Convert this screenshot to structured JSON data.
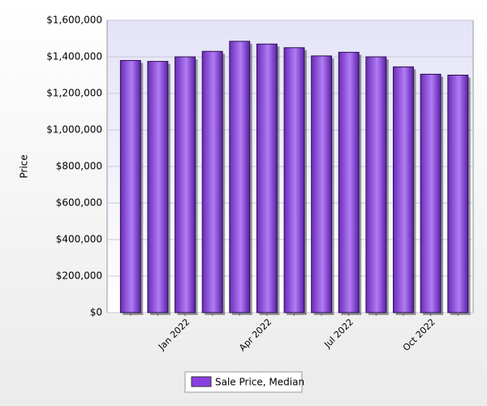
{
  "chart_data": {
    "type": "bar",
    "y_label": "Price",
    "categories": [
      null,
      null,
      "Jan 2022",
      null,
      null,
      "Apr 2022",
      null,
      null,
      "Jul 2022",
      null,
      null,
      "Oct 2022",
      null
    ],
    "series": [
      {
        "name": "Sale Price, Median",
        "color": "#8a3fe0",
        "values": [
          1380000,
          1375000,
          1400000,
          1430000,
          1485000,
          1470000,
          1450000,
          1405000,
          1425000,
          1400000,
          1345000,
          1305000,
          1300000
        ]
      }
    ],
    "ylim": [
      0,
      1600000
    ],
    "yticks": [
      {
        "value": 0,
        "label": "$0"
      },
      {
        "value": 200000,
        "label": "$200,000"
      },
      {
        "value": 400000,
        "label": "$400,000"
      },
      {
        "value": 600000,
        "label": "$600,000"
      },
      {
        "value": 800000,
        "label": "$800,000"
      },
      {
        "value": 1000000,
        "label": "$1,000,000"
      },
      {
        "value": 1200000,
        "label": "$1,200,000"
      },
      {
        "value": 1400000,
        "label": "$1,400,000"
      },
      {
        "value": 1600000,
        "label": "$1,600,000"
      }
    ],
    "grid": true,
    "legend": "bottom"
  }
}
